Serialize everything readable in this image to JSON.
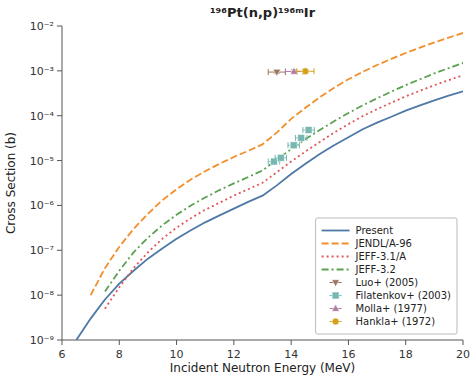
{
  "chart_data": {
    "type": "line",
    "title": "¹⁹⁶Pt(n,p)¹⁹⁶ᵐIr",
    "xlabel": "Incident Neutron Energy (MeV)",
    "ylabel": "Cross Section (b)",
    "log": "y",
    "grid": false,
    "legend": "lower right",
    "xlim": [
      6,
      20
    ],
    "ylim": [
      1e-09,
      0.01
    ],
    "xticks": [
      6,
      8,
      10,
      12,
      14,
      16,
      18,
      20
    ],
    "yticks": [
      {
        "value": 1e-09,
        "label": "10⁻⁹"
      },
      {
        "value": 1e-08,
        "label": "10⁻⁸"
      },
      {
        "value": 1e-07,
        "label": "10⁻⁷"
      },
      {
        "value": 1e-06,
        "label": "10⁻⁶"
      },
      {
        "value": 1e-05,
        "label": "10⁻⁵"
      },
      {
        "value": 0.0001,
        "label": "10⁻⁴"
      },
      {
        "value": 0.001,
        "label": "10⁻³"
      },
      {
        "value": 0.01,
        "label": "10⁻²"
      }
    ],
    "series": [
      {
        "name": "Present",
        "type": "line",
        "line_style": "solid",
        "x": [
          6.5,
          7.0,
          7.5,
          8.0,
          8.5,
          9.0,
          9.5,
          10.0,
          10.5,
          11.0,
          11.5,
          12.0,
          12.5,
          13.0,
          13.5,
          14.0,
          14.5,
          15.0,
          15.5,
          16.0,
          16.5,
          17.0,
          17.5,
          18.0,
          18.5,
          19.0,
          19.5,
          20.0
        ],
        "values": [
          1e-09,
          3e-09,
          8e-09,
          1.8e-08,
          3.5e-08,
          6.5e-08,
          1.1e-07,
          1.8e-07,
          2.8e-07,
          4.2e-07,
          6e-07,
          8.5e-07,
          1.2e-06,
          1.65e-06,
          2.8e-06,
          5e-06,
          8.5e-06,
          1.4e-05,
          2.2e-05,
          3.3e-05,
          5e-05,
          7e-05,
          9.5e-05,
          0.00013,
          0.00017,
          0.00022,
          0.00028,
          0.00035
        ]
      },
      {
        "name": "JENDL/A-96",
        "type": "line",
        "line_style": "dashed",
        "x": [
          7.0,
          7.5,
          8.0,
          8.5,
          9.0,
          9.5,
          10.0,
          10.5,
          11.0,
          11.5,
          12.0,
          12.5,
          13.0,
          13.5,
          14.0,
          14.5,
          15.0,
          15.5,
          16.0,
          16.5,
          17.0,
          17.5,
          18.0,
          18.5,
          19.0,
          19.5,
          20.0
        ],
        "values": [
          1e-08,
          4e-08,
          1.2e-07,
          3e-07,
          6.5e-07,
          1.3e-06,
          2.3e-06,
          3.8e-06,
          5.8e-06,
          8.5e-06,
          1.2e-05,
          1.65e-05,
          2.3e-05,
          4.2e-05,
          8.5e-05,
          0.00015,
          0.00026,
          0.00042,
          0.00065,
          0.00095,
          0.00135,
          0.00185,
          0.0025,
          0.0033,
          0.0043,
          0.0055,
          0.007
        ]
      },
      {
        "name": "JEFF-3.1/A",
        "type": "line",
        "line_style": "dotted",
        "x": [
          7.5,
          8.0,
          8.5,
          9.0,
          9.5,
          10.0,
          10.5,
          11.0,
          11.5,
          12.0,
          12.5,
          13.0,
          13.5,
          14.0,
          14.5,
          15.0,
          15.5,
          16.0,
          16.5,
          17.0,
          17.5,
          18.0,
          18.5,
          19.0,
          19.5,
          20.0
        ],
        "values": [
          5e-09,
          1.5e-08,
          4e-08,
          9e-08,
          1.8e-07,
          3.2e-07,
          5.2e-07,
          8e-07,
          1.15e-06,
          1.65e-06,
          2.3e-06,
          3.2e-06,
          5.5e-06,
          9.5e-06,
          1.6e-05,
          2.6e-05,
          4.2e-05,
          6.5e-05,
          9.8e-05,
          0.00014,
          0.000195,
          0.00027,
          0.00036,
          0.00048,
          0.00062,
          0.0008
        ]
      },
      {
        "name": "JEFF-3.2",
        "type": "line",
        "line_style": "dashdot",
        "x": [
          7.5,
          8.0,
          8.5,
          9.0,
          9.5,
          10.0,
          10.5,
          11.0,
          11.5,
          12.0,
          12.5,
          13.0,
          13.5,
          14.0,
          14.5,
          15.0,
          15.5,
          16.0,
          16.5,
          17.0,
          17.5,
          18.0,
          18.5,
          19.0,
          19.5,
          20.0
        ],
        "values": [
          1.2e-08,
          3.5e-08,
          9e-08,
          1.9e-07,
          3.6e-07,
          6.2e-07,
          1e-06,
          1.5e-06,
          2.2e-06,
          3.1e-06,
          4.3e-06,
          6e-06,
          1.05e-05,
          1.8e-05,
          3e-05,
          4.8e-05,
          7.5e-05,
          0.000115,
          0.00017,
          0.000245,
          0.000345,
          0.00048,
          0.00065,
          0.00088,
          0.00115,
          0.0015
        ]
      },
      {
        "name": "Luo+ (2005)",
        "type": "scatter",
        "marker": "triangle-down",
        "x": [
          13.5
        ],
        "values": [
          0.00094
        ],
        "yerr": [
          5e-05
        ],
        "xerr": [
          0.3
        ]
      },
      {
        "name": "Filatenkov+ (2003)",
        "type": "scatter",
        "marker": "square",
        "x": [
          13.4,
          13.64,
          14.09,
          14.35,
          14.61
        ],
        "values": [
          9.5e-06,
          1.15e-05,
          2.2e-05,
          3.2e-05,
          4.8e-05
        ],
        "yerr": [
          1e-06,
          1.2e-06,
          2.5e-06,
          3.5e-06,
          5e-06
        ],
        "xerr": [
          0.2,
          0.2,
          0.2,
          0.2,
          0.2
        ]
      },
      {
        "name": "Molla+ (1977)",
        "type": "scatter",
        "marker": "triangle-up",
        "x": [
          14.1
        ],
        "values": [
          0.00097
        ],
        "yerr": [
          8e-05
        ],
        "xerr": [
          0.3
        ]
      },
      {
        "name": "Hankla+ (1972)",
        "type": "scatter",
        "marker": "circle",
        "x": [
          14.5
        ],
        "values": [
          0.00098
        ],
        "yerr": [
          7e-05
        ],
        "xerr": [
          0.3
        ]
      }
    ]
  }
}
